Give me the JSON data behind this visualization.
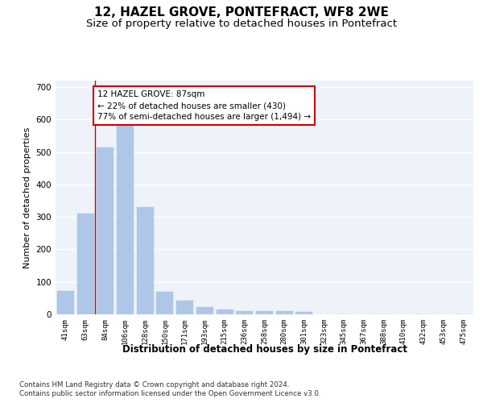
{
  "title": "12, HAZEL GROVE, PONTEFRACT, WF8 2WE",
  "subtitle": "Size of property relative to detached houses in Pontefract",
  "xlabel": "Distribution of detached houses by size in Pontefract",
  "ylabel": "Number of detached properties",
  "categories": [
    "41sqm",
    "63sqm",
    "84sqm",
    "106sqm",
    "128sqm",
    "150sqm",
    "171sqm",
    "193sqm",
    "215sqm",
    "236sqm",
    "258sqm",
    "280sqm",
    "301sqm",
    "323sqm",
    "345sqm",
    "367sqm",
    "388sqm",
    "410sqm",
    "432sqm",
    "453sqm",
    "475sqm"
  ],
  "values": [
    72,
    310,
    515,
    580,
    330,
    70,
    42,
    22,
    15,
    10,
    10,
    10,
    8,
    0,
    0,
    0,
    0,
    0,
    0,
    0,
    0
  ],
  "bar_color": "#aec6e8",
  "bar_edgecolor": "#aec6e8",
  "property_line_x": 1.5,
  "annotation_text": "12 HAZEL GROVE: 87sqm\n← 22% of detached houses are smaller (430)\n77% of semi-detached houses are larger (1,494) →",
  "annotation_box_color": "#ffffff",
  "annotation_box_edgecolor": "#cc0000",
  "annotation_fontsize": 7.5,
  "property_line_color": "#cc0000",
  "ylim": [
    0,
    720
  ],
  "yticks": [
    0,
    100,
    200,
    300,
    400,
    500,
    600,
    700
  ],
  "background_color": "#eef2f9",
  "grid_color": "#ffffff",
  "footer_line1": "Contains HM Land Registry data © Crown copyright and database right 2024.",
  "footer_line2": "Contains public sector information licensed under the Open Government Licence v3.0.",
  "title_fontsize": 11,
  "subtitle_fontsize": 9.5,
  "xlabel_fontsize": 8.5,
  "ylabel_fontsize": 8
}
